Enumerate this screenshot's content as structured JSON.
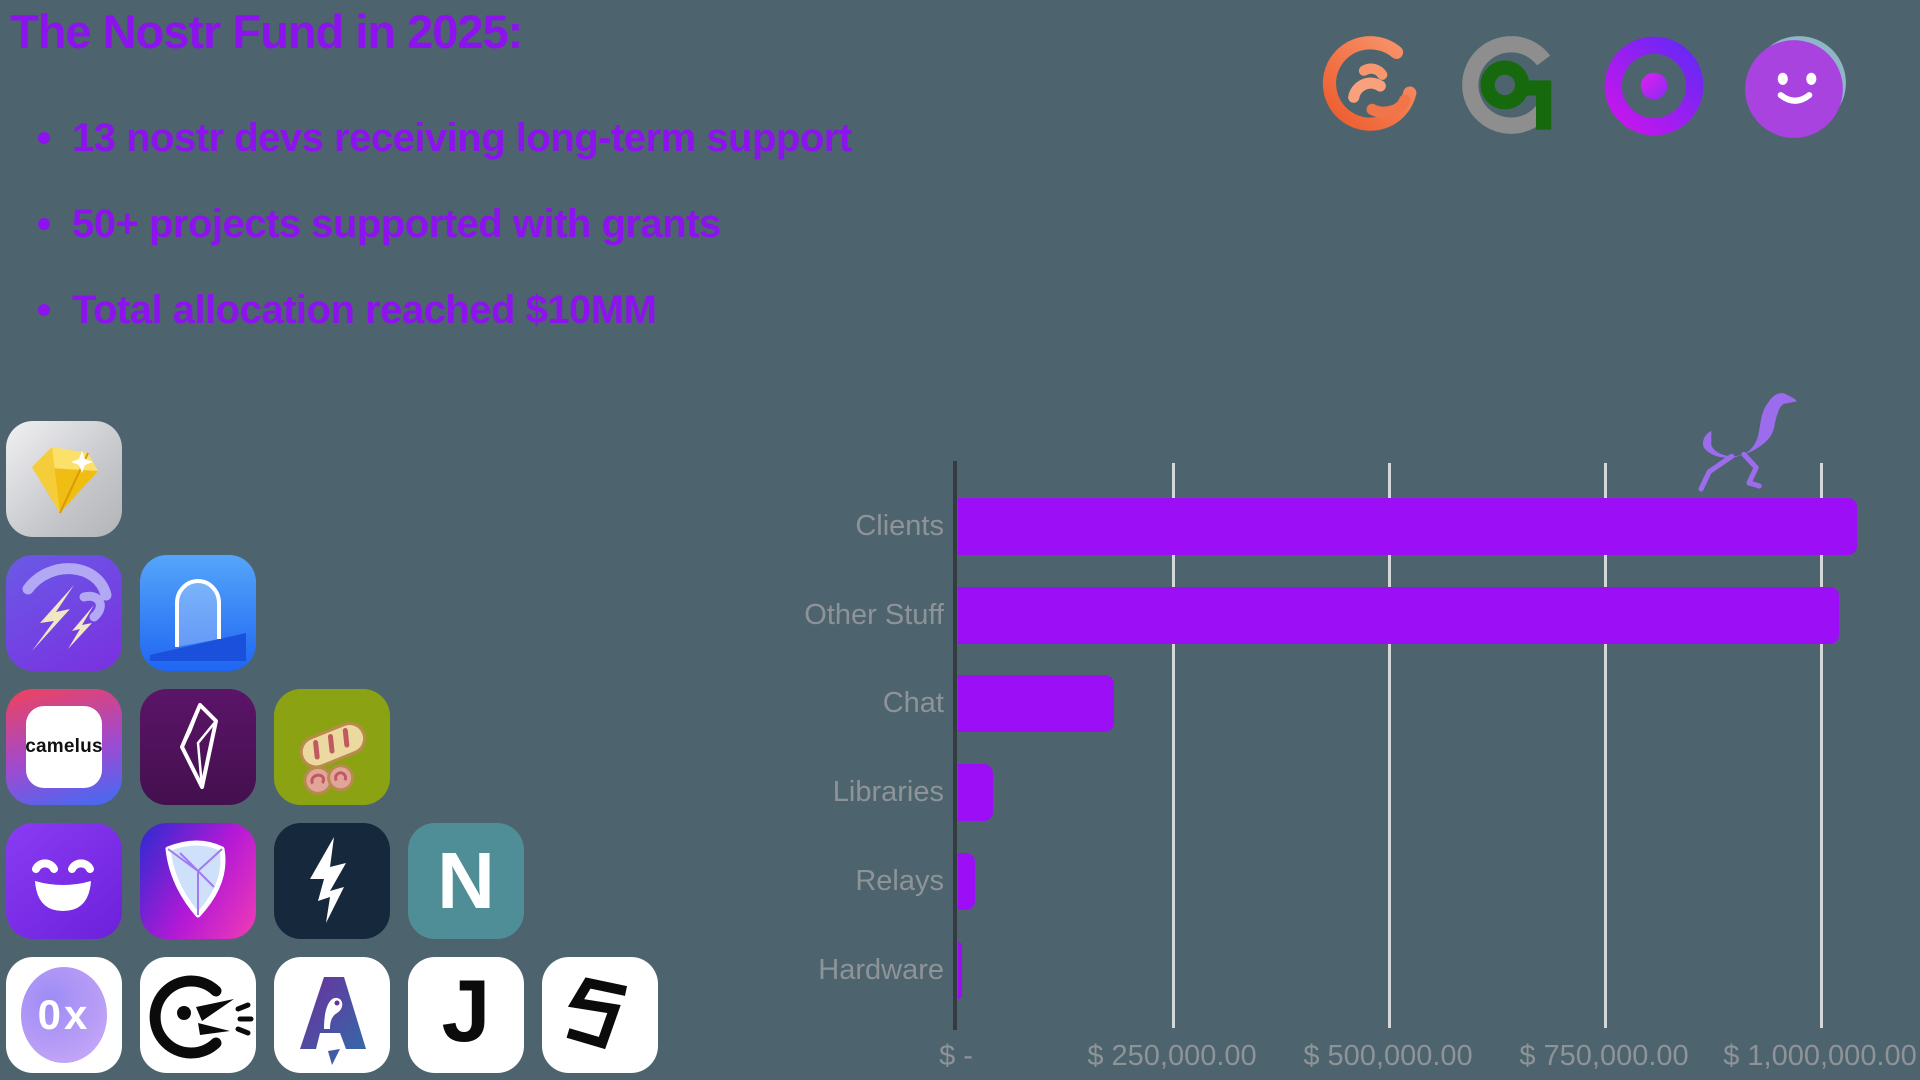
{
  "slide": {
    "title": "The Nostr Fund in 2025:",
    "bullets": [
      "13 nostr devs receiving long-term support",
      "50+ projects supported with grants",
      "Total allocation reached $10MM"
    ]
  },
  "partner_logos": [
    {
      "icon": "orange-swirl-logo-icon"
    },
    {
      "icon": "gray-ring-green-key-logo-icon"
    },
    {
      "icon": "purple-chat-ring-logo-icon"
    },
    {
      "icon": "purple-smiley-ball-logo-icon"
    }
  ],
  "app_icons": {
    "grid_rows": [
      [
        "gold-gem-app-icon"
      ],
      [
        "zap-comet-app-icon",
        "arch-door-app-icon"
      ],
      [
        "camelus-app-icon",
        "amethyst-crystal-app-icon",
        "bread-roll-app-icon"
      ],
      [
        "smiley-face-app-icon",
        "faceted-gem-app-icon",
        "lightning-arrow-app-icon",
        "letter-n-app-icon"
      ],
      [
        "zero-x-chat-app-icon",
        "shouting-bird-app-icon",
        "ostrich-letter-a-app-icon",
        "letter-j-app-icon",
        "ribbon-s-app-icon"
      ]
    ],
    "camelus_label": "camelus",
    "letter_n": "N",
    "letter_j": "J",
    "zero_x": "0x"
  },
  "colors": {
    "background": "#4d646e",
    "accent_text": "#8c12ee",
    "bar": "#9c0ef5",
    "label_gray": "#8e9398",
    "gridline": "#d5d8da",
    "axis": "#333d40",
    "ostrich": "#9d6cec"
  },
  "chart_data": {
    "type": "bar",
    "orientation": "horizontal",
    "title": "",
    "categories": [
      "Clients",
      "Other Stuff",
      "Chat",
      "Libraries",
      "Relays",
      "Hardware"
    ],
    "values": [
      1040000,
      1020000,
      180000,
      41000,
      20000,
      3500
    ],
    "value_unit": "USD",
    "x_tick_labels": [
      "$ -",
      "$ 250,000.00",
      "$ 500,000.00",
      "$ 750,000.00",
      "$ 1,000,000.00"
    ],
    "x_tick_values": [
      0,
      250000,
      500000,
      750000,
      1000000
    ],
    "xlim": [
      0,
      1060000
    ],
    "grid": true,
    "legend": false,
    "bar_color": "#9c0ef5",
    "annotation_icon": "running-ostrich-icon"
  }
}
